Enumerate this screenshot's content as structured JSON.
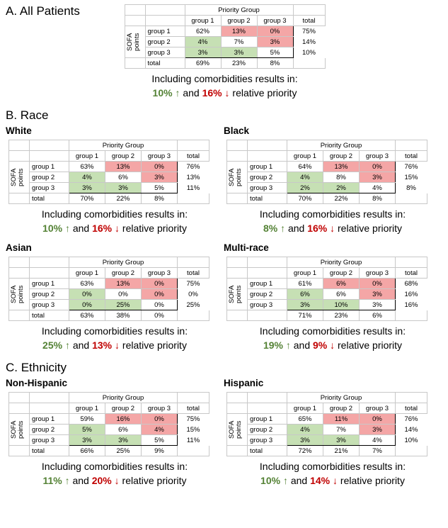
{
  "labels": {
    "priority_group": "Priority Group",
    "sofa": "SOFA points",
    "columns": [
      "group 1",
      "group 2",
      "group 3",
      "total"
    ],
    "caption": "Including comorbidities results in:",
    "and": "and",
    "relative": "relative priority",
    "up_arrow": "↑",
    "down_arrow": "↓"
  },
  "colors": {
    "above": "#f4a6a6",
    "below": "#c6e0b4",
    "up": "#548235",
    "down": "#c00000"
  },
  "sections": [
    {
      "title": "A. All Patients",
      "panels": [
        {
          "row_labels": [
            "group 1",
            "group 2",
            "group 3",
            "total"
          ],
          "cells": [
            [
              "62%",
              "13%",
              "0%"
            ],
            [
              "4%",
              "7%",
              "3%"
            ],
            [
              "3%",
              "3%",
              "5%"
            ]
          ],
          "row_totals": [
            "75%",
            "14%",
            "10%"
          ],
          "column_totals": [
            "69%",
            "23%",
            "8%"
          ],
          "up": "10%",
          "down": "16%"
        }
      ]
    },
    {
      "title": "B. Race",
      "panels": [
        {
          "name": "White",
          "row_labels": [
            "group 1",
            "group 2",
            "group 3",
            "total"
          ],
          "cells": [
            [
              "63%",
              "13%",
              "0%"
            ],
            [
              "4%",
              "6%",
              "3%"
            ],
            [
              "3%",
              "3%",
              "5%"
            ]
          ],
          "row_totals": [
            "76%",
            "13%",
            "11%"
          ],
          "column_totals": [
            "70%",
            "22%",
            "8%"
          ],
          "up": "10%",
          "down": "16%"
        },
        {
          "name": "Black",
          "row_labels": [
            "group 1",
            "group 2",
            "group 3",
            "total"
          ],
          "cells": [
            [
              "64%",
              "13%",
              "0%"
            ],
            [
              "4%",
              "8%",
              "3%"
            ],
            [
              "2%",
              "2%",
              "4%"
            ]
          ],
          "row_totals": [
            "76%",
            "15%",
            "8%"
          ],
          "column_totals": [
            "70%",
            "22%",
            "8%"
          ],
          "up": "8%",
          "down": "16%"
        },
        {
          "name": "Asian",
          "row_labels": [
            "group 1",
            "group 2",
            "group 3",
            "total"
          ],
          "cells": [
            [
              "63%",
              "13%",
              "0%"
            ],
            [
              "0%",
              "0%",
              "0%"
            ],
            [
              "0%",
              "25%",
              "0%"
            ]
          ],
          "row_totals": [
            "75%",
            "0%",
            "25%"
          ],
          "column_totals": [
            "63%",
            "38%",
            "0%"
          ],
          "up": "25%",
          "down": "13%"
        },
        {
          "name": "Multi-race",
          "row_labels": [
            "group 1",
            "group 2",
            "group 3",
            null
          ],
          "cells": [
            [
              "61%",
              "6%",
              "0%"
            ],
            [
              "6%",
              "6%",
              "3%"
            ],
            [
              "3%",
              "10%",
              "3%"
            ]
          ],
          "row_totals": [
            "68%",
            "16%",
            "16%"
          ],
          "column_totals": [
            "71%",
            "23%",
            "6%"
          ],
          "up": "19%",
          "down": "9%"
        }
      ]
    },
    {
      "title": "C. Ethnicity",
      "panels": [
        {
          "name": "Non-Hispanic",
          "row_labels": [
            "group 1",
            "group 2",
            "group 3",
            "total"
          ],
          "cells": [
            [
              "59%",
              "16%",
              "0%"
            ],
            [
              "5%",
              "6%",
              "4%"
            ],
            [
              "3%",
              "3%",
              "5%"
            ]
          ],
          "row_totals": [
            "75%",
            "15%",
            "11%"
          ],
          "column_totals": [
            "66%",
            "25%",
            "9%"
          ],
          "up": "11%",
          "down": "20%"
        },
        {
          "name": "Hispanic",
          "row_labels": [
            "group 1",
            "group 2",
            "group 3",
            "total"
          ],
          "cells": [
            [
              "65%",
              "11%",
              "0%"
            ],
            [
              "4%",
              "7%",
              "3%"
            ],
            [
              "3%",
              "3%",
              "4%"
            ]
          ],
          "row_totals": [
            "76%",
            "14%",
            "10%"
          ],
          "column_totals": [
            "72%",
            "21%",
            "7%"
          ],
          "up": "10%",
          "down": "14%"
        }
      ]
    }
  ]
}
